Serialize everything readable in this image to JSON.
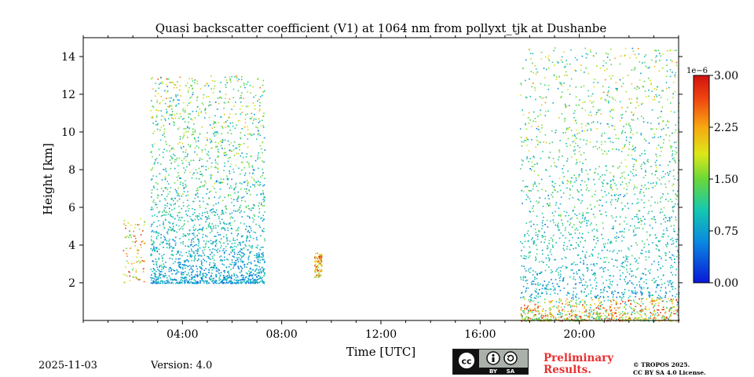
{
  "chart_data": {
    "type": "heatmap",
    "title": "Quasi backscatter coefficient (V1) at 1064 nm from pollyxt_tjk at Dushanbe",
    "xlabel": "Time [UTC]",
    "ylabel": "Height [km]",
    "xlim": [
      0,
      24
    ],
    "ylim": [
      0,
      15
    ],
    "x_tick_labels": [
      "04:00",
      "08:00",
      "12:00",
      "16:00",
      "20:00"
    ],
    "x_tick_values": [
      4,
      8,
      12,
      16,
      20
    ],
    "y_tick_labels": [
      "2",
      "4",
      "6",
      "8",
      "10",
      "12",
      "14"
    ],
    "y_tick_values": [
      2,
      4,
      6,
      8,
      10,
      12,
      14
    ],
    "colorbar": {
      "scale_label": "1e−6",
      "min": 0.0,
      "max": 3.0,
      "tick_labels": [
        "0.00",
        "0.75",
        "1.50",
        "2.25",
        "3.00"
      ],
      "tick_values": [
        0.0,
        0.75,
        1.5,
        2.25,
        3.0
      ],
      "colormap": "jet"
    },
    "data_regions": [
      {
        "t_start": 1.6,
        "t_end": 2.5,
        "h_bottom": 2.0,
        "h_top": 5.5,
        "density": "sparse"
      },
      {
        "t_start": 2.7,
        "t_end": 7.3,
        "h_bottom": 2.0,
        "h_top": 13.0,
        "density": "dense"
      },
      {
        "t_start": 9.3,
        "t_end": 9.6,
        "h_bottom": 2.3,
        "h_top": 3.6,
        "density": "sparse"
      },
      {
        "t_start": 17.6,
        "t_end": 24.0,
        "h_bottom": 0.0,
        "h_top": 14.5,
        "density": "dense"
      }
    ]
  },
  "footer": {
    "date": "2025-11-03",
    "version": "Version: 4.0",
    "preliminary_line1": "Preliminary",
    "preliminary_line2": "Results.",
    "license_line1": "© TROPOS 2025.",
    "license_line2": "CC BY SA 4.0 License.",
    "cc_by": "BY",
    "cc_sa": "SA"
  }
}
